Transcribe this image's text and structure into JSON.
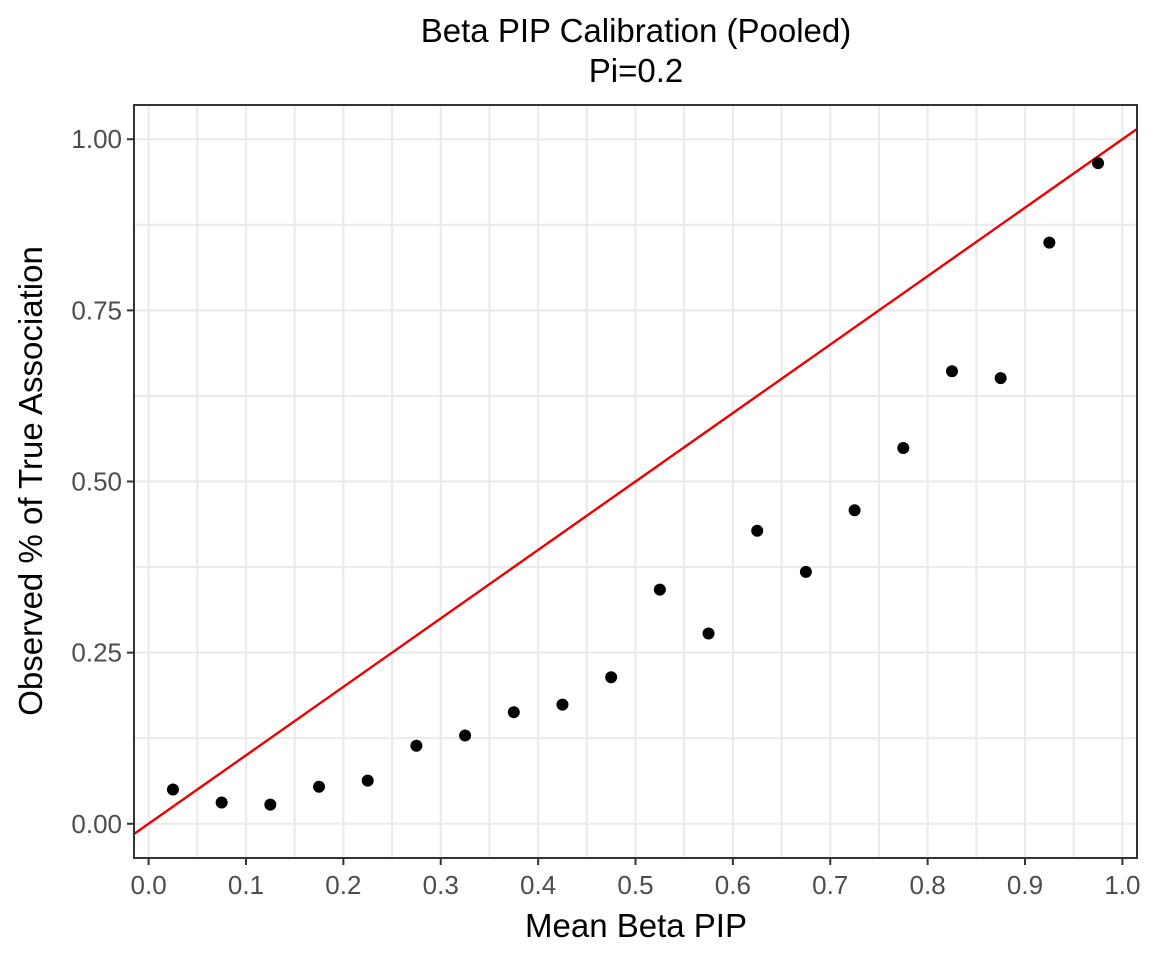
{
  "chart_data": {
    "type": "scatter",
    "title": "Beta PIP Calibration (Pooled)",
    "subtitle": "Pi=0.2",
    "xlabel": "Mean Beta PIP",
    "ylabel": "Observed % of True Association",
    "xlim": [
      -0.015,
      1.015
    ],
    "ylim": [
      -0.05,
      1.05
    ],
    "x_ticks": [
      0.0,
      0.1,
      0.2,
      0.3,
      0.4,
      0.5,
      0.6,
      0.7,
      0.8,
      0.9,
      1.0
    ],
    "x_tick_labels": [
      "0.0",
      "0.1",
      "0.2",
      "0.3",
      "0.4",
      "0.5",
      "0.6",
      "0.7",
      "0.8",
      "0.9",
      "1.0"
    ],
    "y_ticks": [
      0.0,
      0.25,
      0.5,
      0.75,
      1.0
    ],
    "y_tick_labels": [
      "0.00",
      "0.25",
      "0.50",
      "0.75",
      "1.00"
    ],
    "grid": true,
    "legend": "none",
    "reference_line": {
      "slope": 1,
      "intercept": 0,
      "color": "#ee0000"
    },
    "point_color": "#000000",
    "points": {
      "x": [
        0.025,
        0.075,
        0.125,
        0.175,
        0.225,
        0.275,
        0.325,
        0.375,
        0.425,
        0.475,
        0.525,
        0.575,
        0.625,
        0.675,
        0.725,
        0.775,
        0.825,
        0.875,
        0.925,
        0.975
      ],
      "y": [
        0.05,
        0.031,
        0.028,
        0.054,
        0.063,
        0.114,
        0.129,
        0.163,
        0.174,
        0.214,
        0.342,
        0.278,
        0.428,
        0.368,
        0.458,
        0.549,
        0.661,
        0.651,
        0.849,
        0.965
      ]
    }
  }
}
